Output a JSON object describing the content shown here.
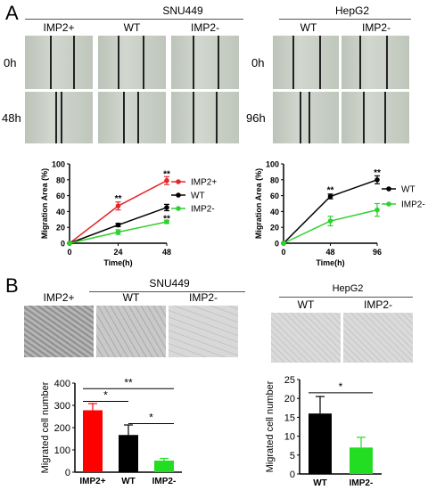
{
  "panel_a": {
    "letter": "A",
    "snu": {
      "title": "SNU449",
      "cols": [
        "IMP2+",
        "WT",
        "IMP2-"
      ],
      "rows": [
        "0h",
        "48h"
      ]
    },
    "hep": {
      "title": "HepG2",
      "cols": [
        "WT",
        "IMP2-"
      ],
      "rows": [
        "0h",
        "96h"
      ]
    }
  },
  "panel_b": {
    "letter": "B",
    "snu": {
      "title": "SNU449",
      "cols": [
        "IMP2+",
        "WT",
        "IMP2-"
      ]
    },
    "hep": {
      "title": "HepG2",
      "cols": [
        "WT",
        "IMP2-"
      ]
    }
  },
  "chart_data": [
    {
      "type": "line",
      "xlabel": "Time(h)",
      "ylabel": "Migration Area (%)",
      "x": [
        0,
        24,
        48
      ],
      "xlim": [
        0,
        48
      ],
      "ylim": [
        0,
        100
      ],
      "yticks": [
        0,
        20,
        40,
        60,
        80,
        100
      ],
      "legend": "right",
      "series": [
        {
          "name": "IMP2+",
          "color": "#e8262a",
          "values": [
            0,
            47,
            79
          ],
          "err": [
            0,
            5,
            5
          ]
        },
        {
          "name": "WT",
          "color": "#000000",
          "values": [
            0,
            23,
            45
          ],
          "err": [
            0,
            2,
            4
          ]
        },
        {
          "name": "IMP2-",
          "color": "#2fd12f",
          "values": [
            0,
            14,
            27
          ],
          "err": [
            0,
            3,
            2
          ]
        }
      ],
      "annotations": [
        {
          "x": 24,
          "text": "**",
          "above": 56
        },
        {
          "x": 48,
          "text": "**",
          "above": 87
        },
        {
          "x": 48,
          "text": "**",
          "above": 31
        }
      ]
    },
    {
      "type": "line",
      "xlabel": "Time(h)",
      "ylabel": "Migration Area (%)",
      "x": [
        0,
        48,
        96
      ],
      "xlim": [
        0,
        96
      ],
      "ylim": [
        0,
        100
      ],
      "yticks": [
        0,
        20,
        40,
        60,
        80,
        100
      ],
      "legend": "right",
      "series": [
        {
          "name": "WT",
          "color": "#000000",
          "values": [
            0,
            59,
            80
          ],
          "err": [
            0,
            3,
            5
          ]
        },
        {
          "name": "IMP2-",
          "color": "#2fd12f",
          "values": [
            0,
            28,
            42
          ],
          "err": [
            0,
            6,
            8
          ]
        }
      ],
      "annotations": [
        {
          "x": 48,
          "text": "**",
          "above": 67
        },
        {
          "x": 96,
          "text": "**",
          "above": 89
        }
      ]
    },
    {
      "type": "bar",
      "ylabel": "Migrated cell number",
      "categories": [
        "IMP2+",
        "WT",
        "IMP2-"
      ],
      "values": [
        278,
        167,
        52
      ],
      "err": [
        30,
        45,
        10
      ],
      "colors": [
        "#ff0000",
        "#000000",
        "#22dd22"
      ],
      "ylim": [
        0,
        400
      ],
      "yticks": [
        0,
        100,
        200,
        300,
        400
      ],
      "significance": [
        {
          "from": 0,
          "to": 2,
          "y": 375,
          "text": "**"
        },
        {
          "from": 0,
          "to": 1,
          "y": 318,
          "text": "*"
        },
        {
          "from": 1,
          "to": 2,
          "y": 218,
          "text": "*"
        }
      ]
    },
    {
      "type": "bar",
      "ylabel": "Migrated cell number",
      "categories": [
        "WT",
        "IMP2-"
      ],
      "values": [
        16,
        7
      ],
      "err": [
        4.5,
        2.7
      ],
      "colors": [
        "#000000",
        "#22dd22"
      ],
      "ylim": [
        0,
        25
      ],
      "yticks": [
        0,
        5,
        10,
        15,
        20,
        25
      ],
      "significance": [
        {
          "from": 0,
          "to": 1,
          "y": 21.5,
          "text": "*"
        }
      ]
    }
  ]
}
